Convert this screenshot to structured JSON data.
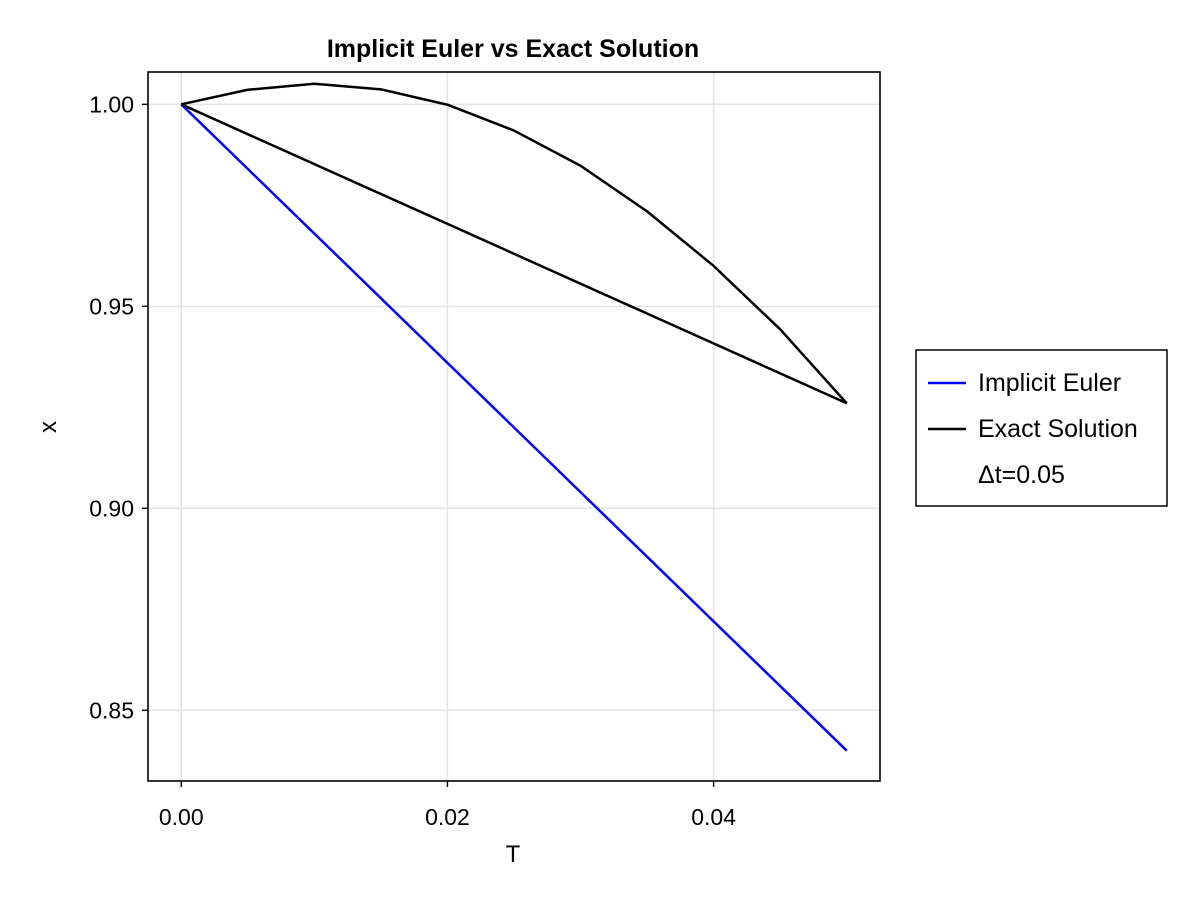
{
  "chart_data": {
    "type": "line",
    "title": "Implicit Euler vs Exact Solution",
    "xlabel": "T",
    "ylabel": "x",
    "xlim": [
      -0.0025,
      0.0525
    ],
    "ylim": [
      0.8325,
      1.008
    ],
    "xticks": [
      0.0,
      0.02,
      0.04
    ],
    "xtick_labels": [
      "0.00",
      "0.02",
      "0.04"
    ],
    "yticks": [
      0.85,
      0.9,
      0.95,
      1.0
    ],
    "ytick_labels": [
      "0.85",
      "0.90",
      "0.95",
      "1.00"
    ],
    "grid": true,
    "legend_position": "right",
    "series": [
      {
        "name": "Implicit Euler",
        "color": "#0000ff",
        "x": [
          0.0,
          0.05
        ],
        "y": [
          1.0,
          0.84
        ]
      },
      {
        "name": "Exact Solution",
        "color": "#000000",
        "x": [
          0.0,
          0.05
        ],
        "y": [
          1.0,
          0.926
        ]
      },
      {
        "name": "Exact Solution (curve)",
        "color": "#000000",
        "in_legend": false,
        "x": [
          0.0,
          0.005,
          0.01,
          0.015,
          0.02,
          0.025,
          0.03,
          0.035,
          0.04,
          0.045,
          0.05
        ],
        "y": [
          1.0,
          1.0036,
          1.0051,
          1.0037,
          0.9999,
          0.9935,
          0.9848,
          0.9735,
          0.96,
          0.9443,
          0.926
        ]
      }
    ],
    "legend": {
      "entries": [
        {
          "label": "Implicit Euler",
          "color": "#0000ff"
        },
        {
          "label": "Exact Solution",
          "color": "#000000"
        },
        {
          "label": "Δt=0.05",
          "color": "none"
        }
      ]
    }
  }
}
